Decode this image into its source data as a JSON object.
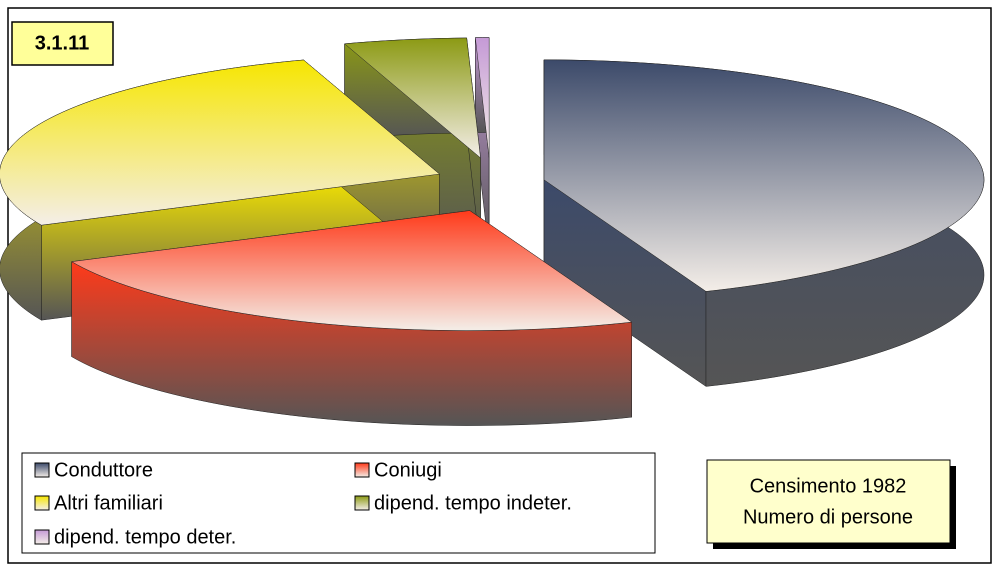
{
  "chart_data": {
    "type": "pie",
    "title": "3.1.11",
    "annotations": [
      "Censimento 1982",
      "Numero di persone"
    ],
    "categories": [
      "Conduttore",
      "Coniugi",
      "Altri familiari",
      "dipend. tempo indeter.",
      "dipend. tempo deter."
    ],
    "values": [
      44,
      24,
      27,
      4.5,
      0.5
    ],
    "colors": [
      "#3c4a6a",
      "#ff3a1a",
      "#f6e600",
      "#8c9a14",
      "#c59ad6"
    ],
    "legend": "bottom-left"
  }
}
